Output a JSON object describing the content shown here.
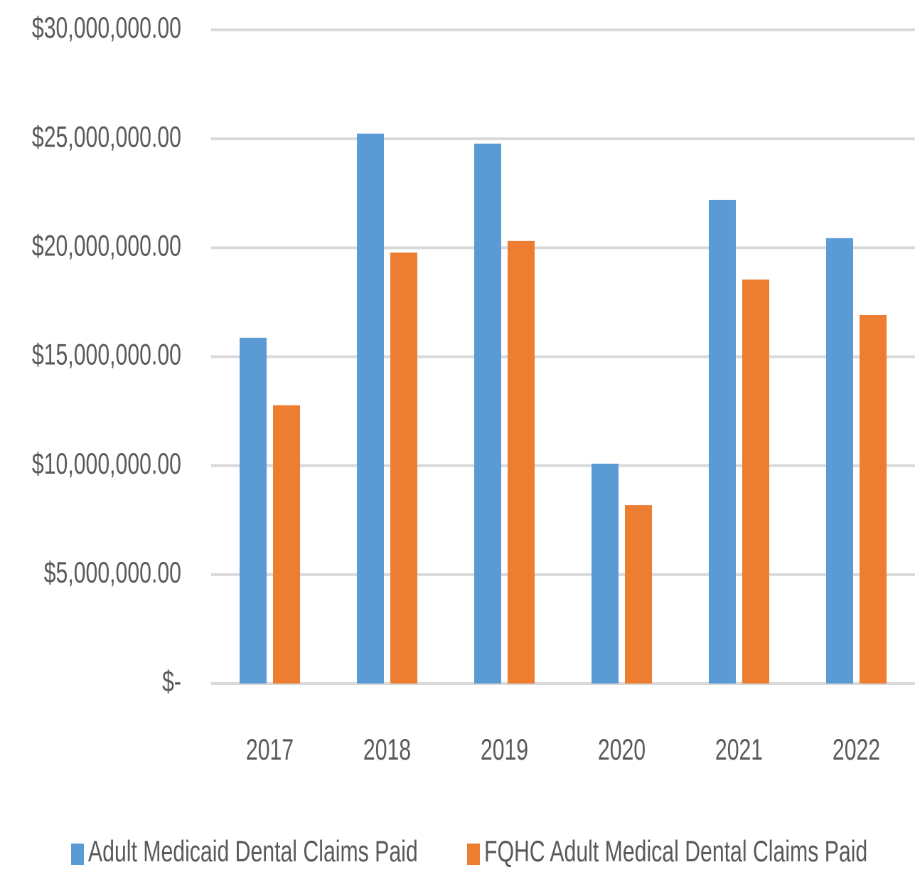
{
  "chart_data": {
    "type": "bar",
    "categories": [
      "2017",
      "2018",
      "2019",
      "2020",
      "2021",
      "2022"
    ],
    "series": [
      {
        "name": "Adult Medicaid Dental Claims Paid",
        "color": "#5b9bd5",
        "values": [
          15870000,
          25240000,
          24780000,
          10090000,
          22200000,
          20440000
        ]
      },
      {
        "name": "FQHC Adult Medical Dental Claims Paid",
        "color": "#ed7d31",
        "values": [
          12770000,
          19780000,
          20310000,
          8190000,
          18540000,
          16910000
        ]
      }
    ],
    "ylim": [
      0,
      30000000
    ],
    "yticks": [
      {
        "value": 0,
        "label": "$-"
      },
      {
        "value": 5000000,
        "label": "$5,000,000.00"
      },
      {
        "value": 10000000,
        "label": "$10,000,000.00"
      },
      {
        "value": 15000000,
        "label": "$15,000,000.00"
      },
      {
        "value": 20000000,
        "label": "$20,000,000.00"
      },
      {
        "value": 25000000,
        "label": "$25,000,000.00"
      },
      {
        "value": 30000000,
        "label": "$30,000,000.00"
      }
    ],
    "grid": true,
    "legend": "bottom"
  }
}
